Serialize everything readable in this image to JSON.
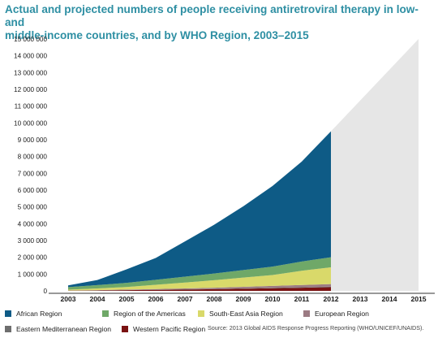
{
  "title_line1": "Actual and projected numbers of people receiving antiretroviral therapy in low-and",
  "title_line2": "middle-income countries, and by WHO Region, 2003–2015",
  "source": "Source: 2013 Global AIDS Response Progress Reporting (WHO/UNICEF/UNAIDS).",
  "chart_data": {
    "type": "area",
    "stacked": true,
    "x": [
      2003,
      2004,
      2005,
      2006,
      2007,
      2008,
      2009,
      2010,
      2011,
      2012
    ],
    "x_ticks": [
      "2003",
      "2004",
      "2005",
      "2006",
      "2007",
      "2008",
      "2009",
      "2010",
      "2011",
      "2012",
      "2013",
      "2014",
      "2015"
    ],
    "y_ticks": [
      "0",
      "1 000 000",
      "2 000 000",
      "3 000 000",
      "4 000 000",
      "5 000 000",
      "6 000 000",
      "7 000 000",
      "8 000 000",
      "9 000 000",
      "10 000 000",
      "11 000 000",
      "12 000 000",
      "13 000 000",
      "14 000 000",
      "15 000 000"
    ],
    "ylim": [
      0,
      15000000
    ],
    "xlim": [
      2003,
      2015
    ],
    "series": [
      {
        "name": "Western Pacific Region",
        "color": "#7a1212",
        "values": [
          10000,
          20000,
          40000,
          60000,
          80000,
          100000,
          130000,
          160000,
          190000,
          220000
        ]
      },
      {
        "name": "Eastern Mediterranean Region",
        "color": "#6e6e6e",
        "values": [
          5000,
          5000,
          10000,
          10000,
          15000,
          15000,
          20000,
          25000,
          30000,
          35000
        ]
      },
      {
        "name": "European Region",
        "color": "#9c7b83",
        "values": [
          10000,
          20000,
          30000,
          40000,
          50000,
          70000,
          90000,
          110000,
          130000,
          150000
        ]
      },
      {
        "name": "South-East Asia Region",
        "color": "#d9d96a",
        "values": [
          50000,
          100000,
          150000,
          250000,
          350000,
          450000,
          550000,
          650000,
          850000,
          1000000
        ]
      },
      {
        "name": "Region of the Americas",
        "color": "#6fa868",
        "values": [
          150000,
          200000,
          250000,
          300000,
          350000,
          400000,
          450000,
          500000,
          550000,
          600000
        ]
      },
      {
        "name": "African Region",
        "color": "#0e5b86",
        "values": [
          100000,
          300000,
          800000,
          1300000,
          2100000,
          2900000,
          3800000,
          4800000,
          5950000,
          7500000
        ]
      }
    ],
    "projection": {
      "x": [
        2012,
        2015
      ],
      "values": [
        9500000,
        15000000
      ],
      "color": "#e6e6e6"
    },
    "legend": [
      "African Region",
      "Region of the Americas",
      "South-East Asia Region",
      "European Region",
      "Eastern Mediterranean Region",
      "Western Pacific Region"
    ],
    "legend_placement": "bottom",
    "grid": false
  }
}
